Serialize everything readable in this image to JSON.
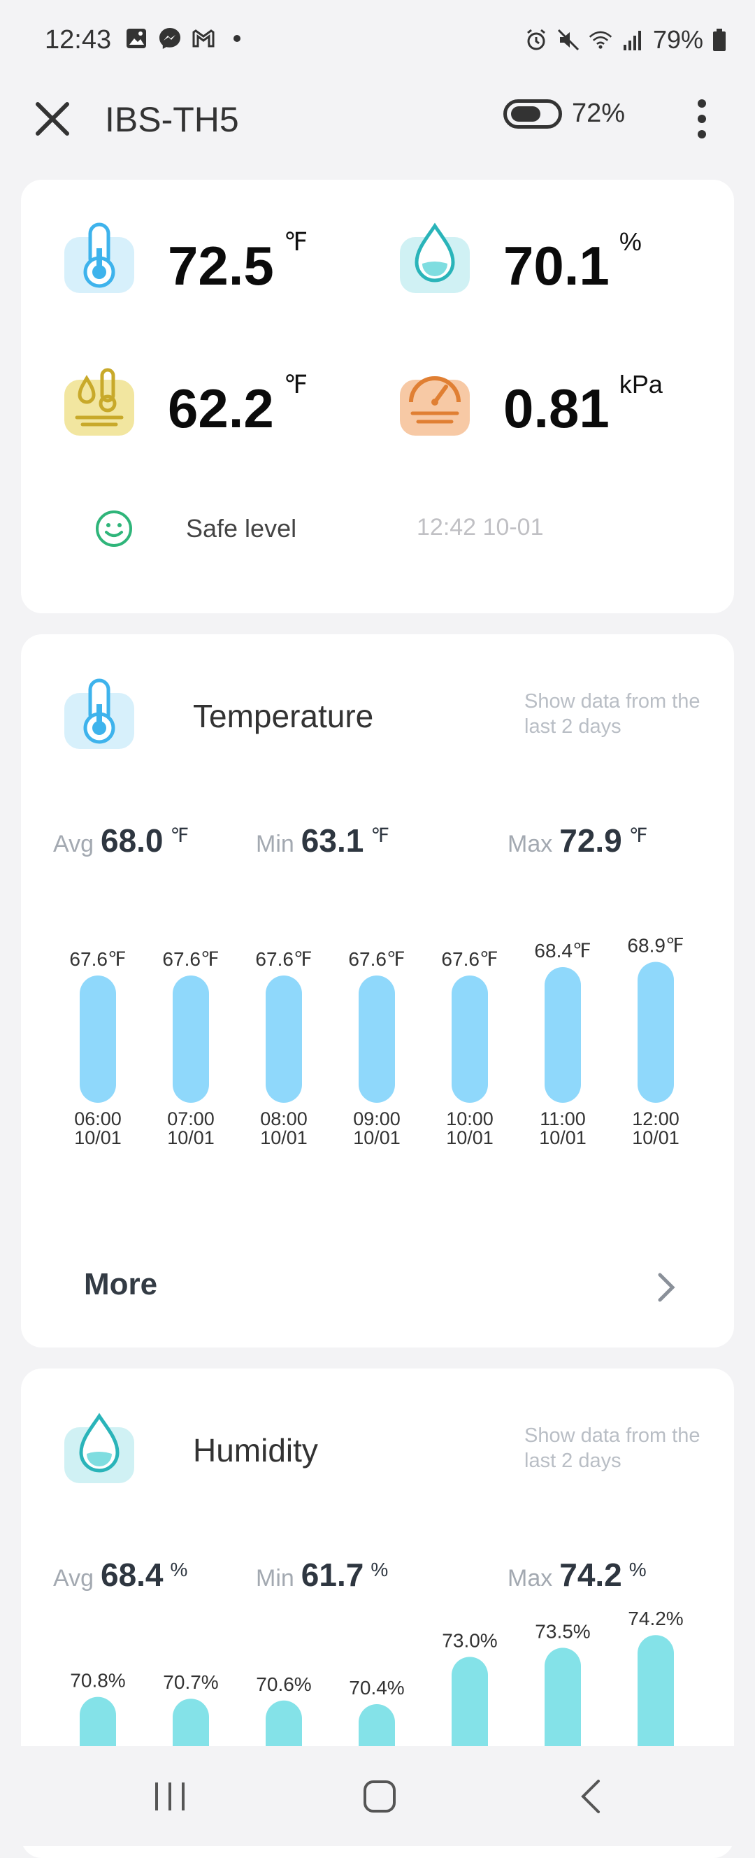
{
  "status_bar": {
    "time": "12:43",
    "battery": "79%",
    "left_icons": [
      "gallery-icon",
      "messenger-icon",
      "gmail-icon",
      "dot-icon"
    ],
    "right_icons": [
      "alarm-icon",
      "mute-icon",
      "wifi-icon",
      "signal-icon",
      "battery-icon"
    ]
  },
  "app_bar": {
    "title": "IBS-TH5",
    "battery_label": "72%",
    "battery_level": 0.72
  },
  "current": {
    "temperature": {
      "value": "72.5",
      "unit": "℉"
    },
    "humidity": {
      "value": "70.1",
      "unit": "%"
    },
    "dew_point": {
      "value": "62.2",
      "unit": "℉"
    },
    "vpd": {
      "value": "0.81",
      "unit": "kPa"
    },
    "status": "Safe level",
    "updated": "12:42 10-01"
  },
  "colors": {
    "temp_bar": "#8fd8fb",
    "humidity_bar": "#84e2e8",
    "safe_green": "#2fb57a",
    "temp_icon_bg": "#d7f0fb",
    "hum_icon_bg": "#d0f1f4",
    "dew_icon_bg": "#f2e6a0",
    "vpd_icon_bg": "#f7c9a5"
  },
  "temperature_section": {
    "title": "Temperature",
    "note": "Show data from the last 2 days",
    "avg": {
      "label": "Avg",
      "value": "68.0",
      "unit": "℉"
    },
    "min": {
      "label": "Min",
      "value": "63.1",
      "unit": "℉"
    },
    "max": {
      "label": "Max",
      "value": "72.9",
      "unit": "℉"
    },
    "more": "More"
  },
  "humidity_section": {
    "title": "Humidity",
    "note": "Show data from the last 2 days",
    "avg": {
      "label": "Avg",
      "value": "68.4",
      "unit": "%"
    },
    "min": {
      "label": "Min",
      "value": "61.7",
      "unit": "%"
    },
    "max": {
      "label": "Max",
      "value": "74.2",
      "unit": "%"
    }
  },
  "chart_data": [
    {
      "type": "bar",
      "categories": [
        "06:00\n10/01",
        "07:00\n10/01",
        "08:00\n10/01",
        "09:00\n10/01",
        "10:00\n10/01",
        "11:00\n10/01",
        "12:00\n10/01"
      ],
      "values": [
        67.6,
        67.6,
        67.6,
        67.6,
        67.6,
        68.4,
        68.9
      ],
      "labels": [
        "67.6℉",
        "67.6℉",
        "67.6℉",
        "67.6℉",
        "67.6℉",
        "68.4℉",
        "68.9℉"
      ]
    },
    {
      "type": "bar",
      "values": [
        70.8,
        70.7,
        70.6,
        70.4,
        73.0,
        73.5,
        74.2
      ],
      "labels": [
        "70.8%",
        "70.7%",
        "70.6%",
        "70.4%",
        "73.0%",
        "73.5%",
        "74.2%"
      ]
    }
  ]
}
